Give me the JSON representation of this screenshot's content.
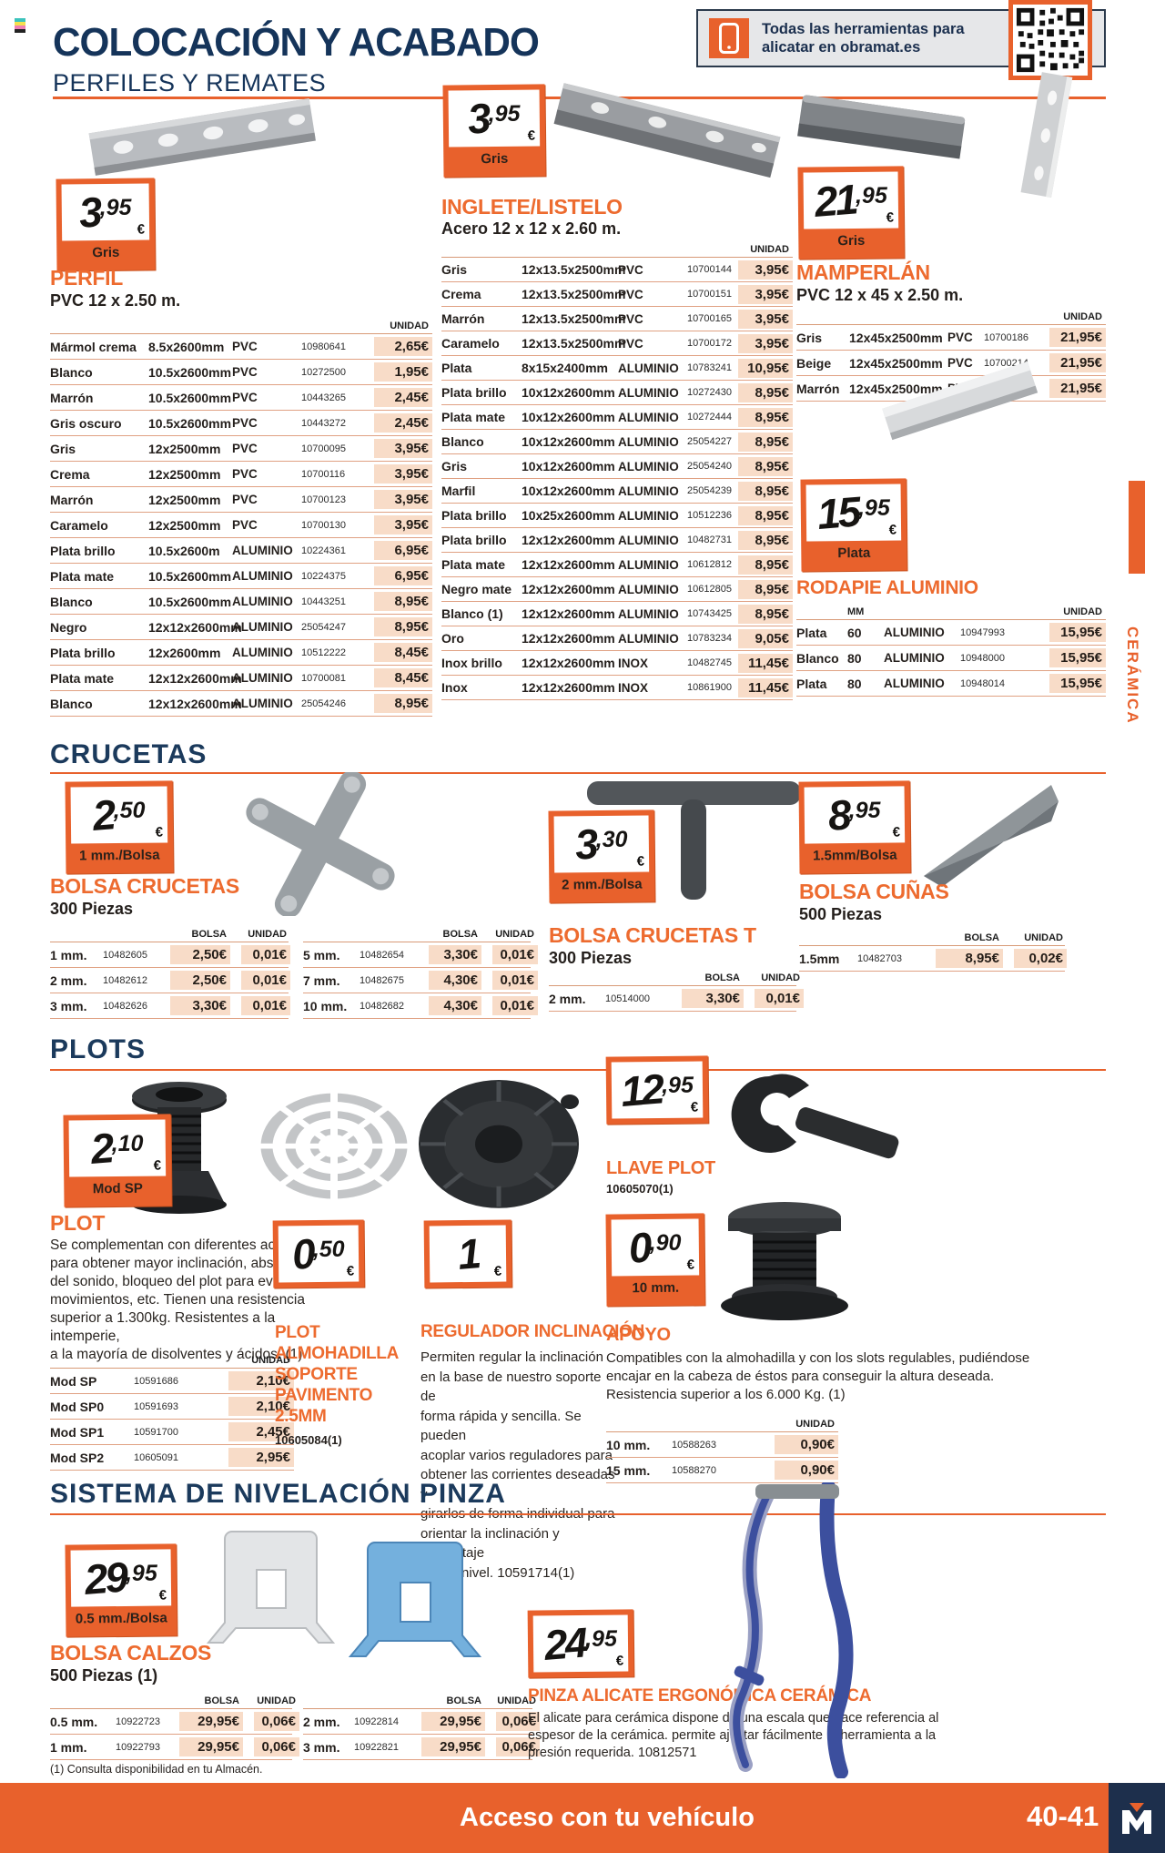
{
  "labels": {
    "unidad": "UNIDAD",
    "bolsa": "BOLSA",
    "mm": "MM"
  },
  "page": {
    "title": "COLOCACIÓN Y ACABADO",
    "subtitle": "PERFILES Y REMATES",
    "banner_line1": "Todas las herramientas para",
    "banner_line2": "alicatar en obramat.es",
    "side_tab": "CERÁMICA",
    "footnote": "(1) Consulta disponibilidad en tu Almacén.",
    "footer_left": "Acceso con tu vehículo",
    "footer_pages": "40-41"
  },
  "colors": {
    "accent": "#e8612c",
    "navy": "#15345a",
    "price_bg": "#f8dcc8",
    "banner_bg": "#e6e7e9",
    "footer_navy": "#1d2f4c"
  },
  "perfil": {
    "tag": {
      "int": "3",
      "dec": ",95",
      "eur": "€",
      "band": "Gris"
    },
    "title": "PERFIL",
    "subtitle": "PVC 12 x 2.50 m.",
    "rows": [
      [
        "Mármol crema",
        "8.5x2600mm",
        "PVC",
        "10980641",
        "2,65€"
      ],
      [
        "Blanco",
        "10.5x2600mm",
        "PVC",
        "10272500",
        "1,95€"
      ],
      [
        "Marrón",
        "10.5x2600mm",
        "PVC",
        "10443265",
        "2,45€"
      ],
      [
        "Gris oscuro",
        "10.5x2600mm",
        "PVC",
        "10443272",
        "2,45€"
      ],
      [
        "Gris",
        "12x2500mm",
        "PVC",
        "10700095",
        "3,95€"
      ],
      [
        "Crema",
        "12x2500mm",
        "PVC",
        "10700116",
        "3,95€"
      ],
      [
        "Marrón",
        "12x2500mm",
        "PVC",
        "10700123",
        "3,95€"
      ],
      [
        "Caramelo",
        "12x2500mm",
        "PVC",
        "10700130",
        "3,95€"
      ],
      [
        "Plata brillo",
        "10.5x2600m",
        "ALUMINIO",
        "10224361",
        "6,95€"
      ],
      [
        "Plata mate",
        "10.5x2600mm",
        "ALUMINIO",
        "10224375",
        "6,95€"
      ],
      [
        "Blanco",
        "10.5x2600mm",
        "ALUMINIO",
        "10443251",
        "8,95€"
      ],
      [
        "Negro",
        "12x12x2600mm",
        "ALUMINIO",
        "25054247",
        "8,95€"
      ],
      [
        "Plata brillo",
        "12x2600mm",
        "ALUMINIO",
        "10512222",
        "8,45€"
      ],
      [
        "Plata mate",
        "12x12x2600mm",
        "ALUMINIO",
        "10700081",
        "8,45€"
      ],
      [
        "Blanco",
        "12x12x2600mm",
        "ALUMINIO",
        "25054246",
        "8,95€"
      ]
    ]
  },
  "inglete": {
    "tag": {
      "int": "3",
      "dec": ",95",
      "eur": "€",
      "band": "Gris"
    },
    "title": "INGLETE/LISTELO",
    "subtitle": "Acero 12 x 12 x 2.60 m.",
    "rows": [
      [
        "Gris",
        "12x13.5x2500mm",
        "PVC",
        "10700144",
        "3,95€"
      ],
      [
        "Crema",
        "12x13.5x2500mm",
        "PVC",
        "10700151",
        "3,95€"
      ],
      [
        "Marrón",
        "12x13.5x2500mm",
        "PVC",
        "10700165",
        "3,95€"
      ],
      [
        "Caramelo",
        "12x13.5x2500mm",
        "PVC",
        "10700172",
        "3,95€"
      ],
      [
        "Plata",
        "8x15x2400mm",
        "ALUMINIO",
        "10783241",
        "10,95€"
      ],
      [
        "Plata brillo",
        "10x12x2600mm",
        "ALUMINIO",
        "10272430",
        "8,95€"
      ],
      [
        "Plata mate",
        "10x12x2600mm",
        "ALUMINIO",
        "10272444",
        "8,95€"
      ],
      [
        "Blanco",
        "10x12x2600mm",
        "ALUMINIO",
        "25054227",
        "8,95€"
      ],
      [
        "Gris",
        "10x12x2600mm",
        "ALUMINIO",
        "25054240",
        "8,95€"
      ],
      [
        "Marfil",
        "10x12x2600mm",
        "ALUMINIO",
        "25054239",
        "8,95€"
      ],
      [
        "Plata brillo",
        "10x25x2600mm",
        "ALUMINIO",
        "10512236",
        "8,95€"
      ],
      [
        "Plata brillo",
        "12x12x2600mm",
        "ALUMINIO",
        "10482731",
        "8,95€"
      ],
      [
        "Plata mate",
        "12x12x2600mm",
        "ALUMINIO",
        "10612812",
        "8,95€"
      ],
      [
        "Negro mate",
        "12x12x2600mm",
        "ALUMINIO",
        "10612805",
        "8,95€"
      ],
      [
        "Blanco (1)",
        "12x12x2600mm",
        "ALUMINIO",
        "10743425",
        "8,95€"
      ],
      [
        "Oro",
        "12x12x2600mm",
        "ALUMINIO",
        "10783234",
        "9,05€"
      ],
      [
        "Inox brillo",
        "12x12x2600mm",
        "INOX",
        "10482745",
        "11,45€"
      ],
      [
        "Inox",
        "12x12x2600mm",
        "INOX",
        "10861900",
        "11,45€"
      ]
    ]
  },
  "mamperlan": {
    "tag": {
      "int": "21",
      "dec": ",95",
      "eur": "€",
      "band": "Gris"
    },
    "title": "MAMPERLÁN",
    "subtitle": "PVC 12 x 45 x 2.50 m.",
    "rows": [
      [
        "Gris",
        "12x45x2500mm",
        "PVC",
        "10700186",
        "21,95€"
      ],
      [
        "Beige",
        "12x45x2500mm",
        "PVC",
        "10700214",
        "21,95€"
      ],
      [
        "Marrón",
        "12x45x2500mm",
        "PVC",
        "10700221",
        "21,95€"
      ]
    ]
  },
  "rodapie": {
    "tag": {
      "int": "15",
      "dec": ",95",
      "eur": "€",
      "band": "Plata"
    },
    "title": "RODAPIE ALUMINIO",
    "rows": [
      [
        "Plata",
        "60",
        "ALUMINIO",
        "10947993",
        "15,95€"
      ],
      [
        "Blanco",
        "80",
        "ALUMINIO",
        "10948000",
        "15,95€"
      ],
      [
        "Plata",
        "80",
        "ALUMINIO",
        "10948014",
        "15,95€"
      ]
    ]
  },
  "crucetas": {
    "heading": "CRUCETAS",
    "bolsa": {
      "tag": {
        "int": "2",
        "dec": ",50",
        "eur": "€",
        "band": "1 mm./Bolsa"
      },
      "title": "BOLSA CRUCETAS",
      "subtitle": "300 Piezas",
      "rows_left": [
        [
          "1 mm.",
          "10482605",
          "2,50€",
          "0,01€"
        ],
        [
          "2 mm.",
          "10482612",
          "2,50€",
          "0,01€"
        ],
        [
          "3 mm.",
          "10482626",
          "3,30€",
          "0,01€"
        ]
      ],
      "rows_right": [
        [
          "5 mm.",
          "10482654",
          "3,30€",
          "0,01€"
        ],
        [
          "7 mm.",
          "10482675",
          "4,30€",
          "0,01€"
        ],
        [
          "10 mm.",
          "10482682",
          "4,30€",
          "0,01€"
        ]
      ]
    },
    "bolsa_t": {
      "tag": {
        "int": "3",
        "dec": ",30",
        "eur": "€",
        "band": "2 mm./Bolsa"
      },
      "title": "BOLSA CRUCETAS T",
      "subtitle": "300 Piezas",
      "rows": [
        [
          "2 mm.",
          "10514000",
          "3,30€",
          "0,01€"
        ]
      ]
    },
    "cunas": {
      "tag": {
        "int": "8",
        "dec": ",95",
        "eur": "€",
        "band": "1.5mm/Bolsa"
      },
      "title": "BOLSA CUÑAS",
      "subtitle": "500 Piezas",
      "rows": [
        [
          "1.5mm",
          "10482703",
          "8,95€",
          "0,02€"
        ]
      ]
    }
  },
  "plots": {
    "heading": "PLOTS",
    "plot": {
      "tag": {
        "int": "2",
        "dec": ",10",
        "eur": "€",
        "band": "Mod SP"
      },
      "title": "PLOT",
      "paragraph": "Se complementan con diferentes accesorios\npara obtener mayor inclinación, absorción\ndel sonido, bloqueo del plot para evitar\nmovimientos, etc. Tienen una resistencia\nsuperior a 1.300kg. Resistentes a la intemperie,\na la mayoría de disolventes y ácidos. (1)",
      "rows": [
        [
          "Mod SP",
          "10591686",
          "2,10€"
        ],
        [
          "Mod SP0",
          "10591693",
          "2,10€"
        ],
        [
          "Mod SP1",
          "10591700",
          "2,45€"
        ],
        [
          "Mod SP2",
          "10605091",
          "2,95€"
        ]
      ]
    },
    "almohadilla": {
      "tag": {
        "int": "0",
        "dec": ",50",
        "eur": "€"
      },
      "title": "PLOT\nALMOHADILLA\nSOPORTE\nPAVIMENTO\n2.5MM",
      "code": "10605084(1)"
    },
    "regulador": {
      "tag": {
        "int": "1",
        "dec": "",
        "eur": "€"
      },
      "title": "REGULADOR INCLINACIÓN",
      "paragraph": "Permiten regular la inclinación\nen la base de nuestro soporte de\nforma rápida y sencilla. Se pueden\nacoplar varios reguladores para\nobtener las corrientes deseadas y\ngirarlos de forma individual para\norientar la inclinación y porcentaje\nde desnivel. 10591714(1)"
    },
    "llave": {
      "tag": {
        "int": "12",
        "dec": ",95",
        "eur": "€"
      },
      "title": "LLAVE PLOT",
      "code": "10605070(1)"
    },
    "apoyo": {
      "tag": {
        "int": "0",
        "dec": ",90",
        "eur": "€",
        "band": "10 mm."
      },
      "title": "APOYO",
      "paragraph": "Compatibles con la almohadilla y con los slots regulables, pudiéndose encajar en la cabeza de éstos para conseguir la altura deseada. Resistencia superior a los 6.000 Kg. (1)",
      "rows": [
        [
          "10 mm.",
          "10588263",
          "0,90€"
        ],
        [
          "15 mm.",
          "10588270",
          "0,90€"
        ]
      ]
    }
  },
  "sistema": {
    "heading": "SISTEMA DE NIVELACIÓN PINZA",
    "calzos": {
      "tag": {
        "int": "29",
        "dec": ",95",
        "eur": "€",
        "band": "0.5 mm./Bolsa"
      },
      "title": "BOLSA CALZOS",
      "subtitle": "500 Piezas (1)",
      "rows_left": [
        [
          "0.5 mm.",
          "10922723",
          "29,95€",
          "0,06€"
        ],
        [
          "1 mm.",
          "10922793",
          "29,95€",
          "0,06€"
        ]
      ],
      "rows_right": [
        [
          "2 mm.",
          "10922814",
          "29,95€",
          "0,06€"
        ],
        [
          "3 mm.",
          "10922821",
          "29,95€",
          "0,06€"
        ]
      ]
    },
    "pinza": {
      "tag": {
        "int": "24",
        "dec": ",95",
        "eur": "€"
      },
      "title": "PINZA ALICATE ERGONÓMICA CERÁMICA",
      "paragraph": "El alicate para cerámica dispone de una escala que hace referencia al espesor de la cerámica. permite ajustar fácilmente la herramienta a la presión requerida. 10812571"
    }
  }
}
